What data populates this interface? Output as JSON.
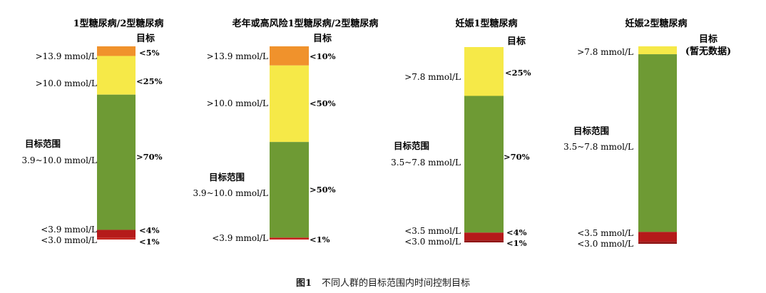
{
  "chart_data": [
    {
      "type": "bar",
      "title": "1型糖尿病/2型糖尿病",
      "target_header": "目标",
      "zone_title": "目标范围",
      "zone_label": "3.9~10.0 mmol/L",
      "segments": [
        {
          "range": ">13.9 mmol/L",
          "target": "<5%",
          "color": "#f0922c",
          "value": 5
        },
        {
          "range": ">10.0 mmol/L",
          "target": "<25%",
          "color": "#f6e948",
          "value": 20
        },
        {
          "range": "3.9~10.0 mmol/L",
          "target": ">70%",
          "color": "#6e9a34",
          "value": 70
        },
        {
          "range": "<3.9 mmol/L",
          "target": "<4%",
          "color": "#b51a1a",
          "value": 4
        },
        {
          "range": "<3.0 mmol/L",
          "target": "<1%",
          "color": "#c4241f",
          "value": 1
        }
      ]
    },
    {
      "type": "bar",
      "title": "老年或高风险1型糖尿病/2型糖尿病",
      "target_header": "目标",
      "zone_title": "目标范围",
      "zone_label": "3.9~10.0 mmol/L",
      "segments": [
        {
          "range": ">13.9 mmol/L",
          "target": "<10%",
          "color": "#f0922c",
          "value": 10
        },
        {
          "range": ">10.0 mmol/L",
          "target": "<50%",
          "color": "#f6e948",
          "value": 40
        },
        {
          "range": "3.9~10.0 mmol/L",
          "target": ">50%",
          "color": "#6e9a34",
          "value": 50
        },
        {
          "range": "<3.9 mmol/L",
          "target": "<1%",
          "color": "#c4241f",
          "value": 1
        }
      ]
    },
    {
      "type": "bar",
      "title": "妊娠1型糖尿病",
      "target_header": "目标",
      "zone_title": "目标范围",
      "zone_label": "3.5~7.8 mmol/L",
      "segments": [
        {
          "range": ">7.8 mmol/L",
          "target": "<25%",
          "color": "#f6e948",
          "value": 25
        },
        {
          "range": "3.5~7.8 mmol/L",
          "target": ">70%",
          "color": "#6e9a34",
          "value": 70
        },
        {
          "range": "<3.5 mmol/L",
          "target": "<4%",
          "color": "#b51a1a",
          "value": 4
        },
        {
          "range": "<3.0 mmol/L",
          "target": "<1%",
          "color": "#8f1313",
          "value": 1
        }
      ]
    },
    {
      "type": "bar",
      "title": "妊娠2型糖尿病",
      "target_header": "目标",
      "target_note": "(暂无数据)",
      "zone_title": "目标范围",
      "zone_label": "3.5~7.8 mmol/L",
      "segments": [
        {
          "range": ">7.8 mmol/L",
          "target": "",
          "color": "#f6e948",
          "value": 4
        },
        {
          "range": "3.5~7.8 mmol/L",
          "target": "",
          "color": "#6e9a34",
          "value": 90
        },
        {
          "range": "<3.5 mmol/L",
          "target": "",
          "color": "#b51a1a",
          "value": 5
        },
        {
          "range": "<3.0 mmol/L",
          "target": "",
          "color": "#8f1313",
          "value": 1
        }
      ]
    }
  ],
  "caption": {
    "figure_no": "图1",
    "text": "不同人群的目标范围内时间控制目标"
  }
}
